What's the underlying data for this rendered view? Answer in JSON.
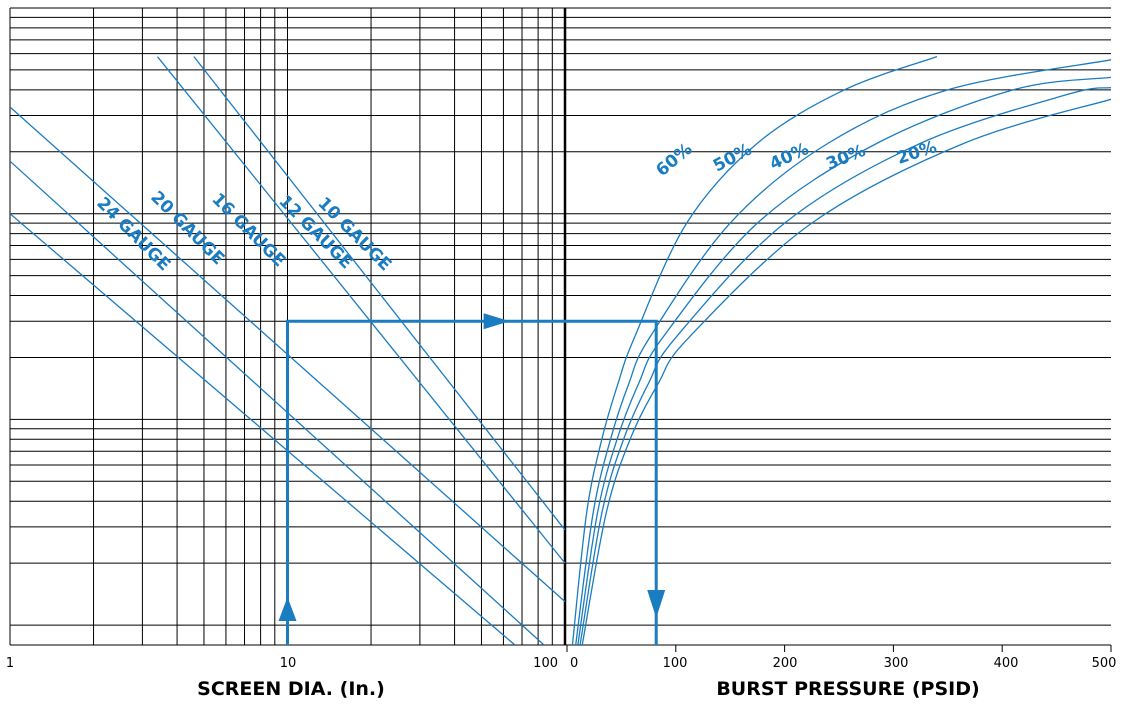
{
  "chart_data": [
    {
      "type": "line",
      "panel": "left",
      "title": "",
      "xlabel": "SCREEN DIA. (In.)",
      "ylabel": "",
      "xscale": "log",
      "xlim": [
        1,
        100
      ],
      "yscale": "log",
      "x_tick_labels": [
        "1",
        "10",
        "100"
      ],
      "grid": true,
      "series": [
        {
          "name": "24 GAUGE",
          "x": [
            1,
            66
          ],
          "y": [
            100,
            0.8
          ]
        },
        {
          "name": "20 GAUGE",
          "x": [
            1,
            84
          ],
          "y": [
            180,
            0.8
          ]
        },
        {
          "name": "16 GAUGE",
          "x": [
            1,
            100
          ],
          "y": [
            330,
            1.3
          ]
        },
        {
          "name": "12 GAUGE",
          "x": [
            3.4,
            100
          ],
          "y": [
            580,
            2.0
          ]
        },
        {
          "name": "10 GAUGE",
          "x": [
            4.6,
            100
          ],
          "y": [
            580,
            2.9
          ]
        }
      ]
    },
    {
      "type": "line",
      "panel": "right",
      "title": "",
      "xlabel": "BURST PRESSURE (PSID)",
      "ylabel": "",
      "xlim": [
        0,
        500
      ],
      "x_tick_labels": [
        "0",
        "100",
        "200",
        "300",
        "400",
        "500"
      ],
      "grid": true,
      "series": [
        {
          "name": "60%",
          "x": [
            5,
            18,
            32,
            47,
            62,
            110,
            175,
            255,
            340
          ],
          "y": [
            0.8,
            3.5,
            8,
            15,
            25,
            90,
            220,
            400,
            580
          ]
        },
        {
          "name": "50%",
          "x": [
            8,
            24,
            40,
            57,
            76,
            150,
            240,
            350,
            500
          ],
          "y": [
            0.8,
            3.5,
            8,
            15,
            25,
            90,
            220,
            400,
            560
          ]
        },
        {
          "name": "40%",
          "x": [
            10,
            28,
            46,
            66,
            88,
            175,
            285,
            410,
            500
          ],
          "y": [
            0.8,
            3.5,
            8,
            15,
            25,
            90,
            220,
            400,
            460
          ]
        },
        {
          "name": "30%",
          "x": [
            12,
            32,
            52,
            75,
            100,
            200,
            325,
            460,
            500
          ],
          "y": [
            0.8,
            3.5,
            8,
            15,
            25,
            90,
            220,
            380,
            410
          ]
        },
        {
          "name": "20%",
          "x": [
            14,
            36,
            58,
            84,
            112,
            225,
            365,
            500
          ],
          "y": [
            0.8,
            3.5,
            8,
            15,
            25,
            90,
            220,
            360
          ]
        }
      ]
    }
  ],
  "example_path": {
    "screen_dia": 10,
    "burst_pressure": 82,
    "level": 30
  }
}
